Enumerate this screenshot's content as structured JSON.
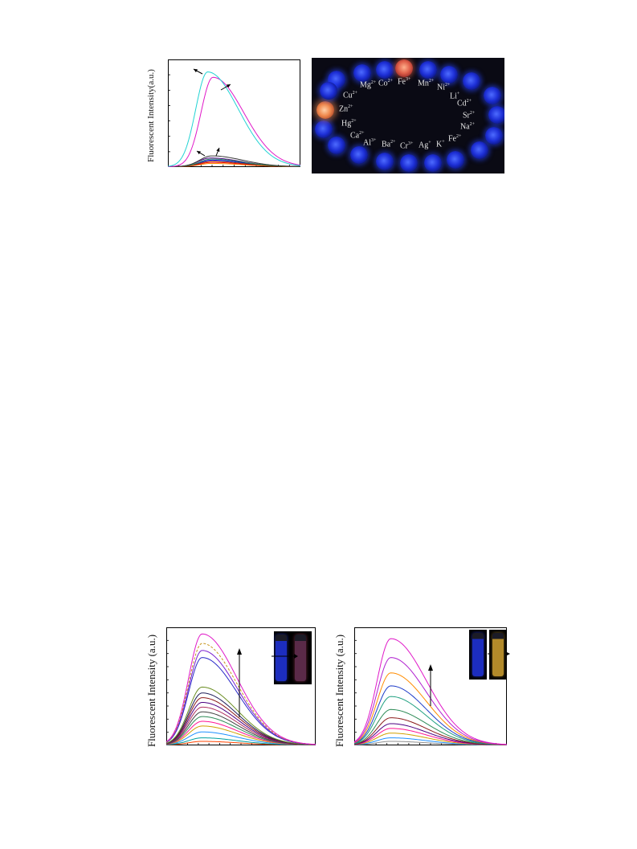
{
  "panels": {
    "top_left": {
      "ylabel": "Fluorescent Intensity(a.u.)"
    },
    "bottom_left": {
      "ylabel": "Fluorescent Intensity (a.u.)"
    },
    "bottom_right": {
      "ylabel": "Fluorescent Intensity (a.u.)"
    }
  },
  "photo": {
    "ions": [
      "Mg2+",
      "Co2+",
      "Fe3+",
      "Mn2+",
      "Ni2+",
      "Li+",
      "Cu2+",
      "Cd2+",
      "Zn2+",
      "Sr2+",
      "Hg2+",
      "Na2+",
      "Ca2+",
      "Fe2+",
      "Al3+",
      "Ba2+",
      "Cr3+",
      "Ag+",
      "K+"
    ],
    "labels": {
      "mg": "Mg",
      "mg_sup": "2+",
      "co": "Co",
      "co_sup": "2+",
      "fe3": "Fe",
      "fe3_sup": "3+",
      "mn": "Mn",
      "mn_sup": "2+",
      "ni": "Ni",
      "ni_sup": "2+",
      "li": "Li",
      "li_sup": "+",
      "cu": "Cu",
      "cu_sup": "2+",
      "cd": "Cd",
      "cd_sup": "2+",
      "zn": "Zn",
      "zn_sup": "2+",
      "sr": "Sr",
      "sr_sup": "2+",
      "hg": "Hg",
      "hg_sup": "2+",
      "na": "Na",
      "na_sup": "2+",
      "ca": "Ca",
      "ca_sup": "2+",
      "fe2": "Fe",
      "fe2_sup": "2+",
      "al": "Al",
      "al_sup": "3+",
      "ba": "Ba",
      "ba_sup": "2+",
      "cr": "Cr",
      "cr_sup": "3+",
      "ag": "Ag",
      "ag_sup": "+",
      "k": "K",
      "k_sup": "+"
    }
  },
  "chart_data": [
    {
      "type": "line",
      "ylabel": "Fluorescent Intensity(a.u.)",
      "xlim": [
        0,
        1
      ],
      "ylim": [
        0,
        1
      ],
      "curve_shape": "emission peaks",
      "series": [
        {
          "color": "#22d3d3",
          "peak": 0.88,
          "peak_x": 0.3
        },
        {
          "color": "#e018c8",
          "peak": 0.83,
          "peak_x": 0.34
        },
        {
          "color": "#3a3a3a",
          "peak": 0.1,
          "peak_x": 0.33
        },
        {
          "color": "#2e8b57",
          "peak": 0.07,
          "peak_x": 0.33
        },
        {
          "color": "#8b4513",
          "peak": 0.05,
          "peak_x": 0.33
        },
        {
          "color": "#4b0082",
          "peak": 0.08,
          "peak_x": 0.32
        },
        {
          "color": "#ff0000",
          "peak": 0.04,
          "peak_x": 0.33
        },
        {
          "color": "#0000ff",
          "peak": 0.06,
          "peak_x": 0.33
        },
        {
          "color": "#ff8c00",
          "peak": 0.03,
          "peak_x": 0.33
        }
      ]
    },
    {
      "type": "line",
      "ylabel": "Fluorescent Intensity (a.u.)",
      "xlim": [
        0,
        1
      ],
      "ylim": [
        0,
        1
      ],
      "series": [
        {
          "color": "#e018c8",
          "peak": 0.94,
          "peak_x": 0.24
        },
        {
          "color": "#c8961e",
          "peak": 0.86,
          "peak_x": 0.24,
          "dashed": true
        },
        {
          "color": "#7a1fd0",
          "peak": 0.8,
          "peak_x": 0.24
        },
        {
          "color": "#2a2ac8",
          "peak": 0.74,
          "peak_x": 0.24
        },
        {
          "color": "#6b8e23",
          "peak": 0.49,
          "peak_x": 0.24
        },
        {
          "color": "#20205a",
          "peak": 0.44,
          "peak_x": 0.24
        },
        {
          "color": "#8b1a1a",
          "peak": 0.4,
          "peak_x": 0.24
        },
        {
          "color": "#4b0082",
          "peak": 0.36,
          "peak_x": 0.24
        },
        {
          "color": "#b03060",
          "peak": 0.32,
          "peak_x": 0.24
        },
        {
          "color": "#404040",
          "peak": 0.28,
          "peak_x": 0.24
        },
        {
          "color": "#2e8b57",
          "peak": 0.24,
          "peak_x": 0.24
        },
        {
          "color": "#ff1493",
          "peak": 0.2,
          "peak_x": 0.24
        },
        {
          "color": "#d0a000",
          "peak": 0.16,
          "peak_x": 0.24
        },
        {
          "color": "#1e90ff",
          "peak": 0.11,
          "peak_x": 0.24
        },
        {
          "color": "#00a0a0",
          "peak": 0.06,
          "peak_x": 0.24
        },
        {
          "color": "#ff4500",
          "peak": 0.03,
          "peak_x": 0.24
        }
      ]
    },
    {
      "type": "line",
      "ylabel": "Fluorescent Intensity (a.u.)",
      "xlim": [
        0,
        1
      ],
      "ylim": [
        0,
        1
      ],
      "series": [
        {
          "color": "#e018c8",
          "peak": 0.9,
          "peak_x": 0.24
        },
        {
          "color": "#b020d0",
          "peak": 0.74,
          "peak_x": 0.24
        },
        {
          "color": "#ff8c00",
          "peak": 0.61,
          "peak_x": 0.24
        },
        {
          "color": "#1e3cc8",
          "peak": 0.5,
          "peak_x": 0.24
        },
        {
          "color": "#20a080",
          "peak": 0.41,
          "peak_x": 0.24
        },
        {
          "color": "#2e8b57",
          "peak": 0.3,
          "peak_x": 0.24
        },
        {
          "color": "#8b1a1a",
          "peak": 0.23,
          "peak_x": 0.24
        },
        {
          "color": "#4b0082",
          "peak": 0.18,
          "peak_x": 0.24
        },
        {
          "color": "#ff1493",
          "peak": 0.14,
          "peak_x": 0.24
        },
        {
          "color": "#d0a000",
          "peak": 0.1,
          "peak_x": 0.24
        },
        {
          "color": "#1e90ff",
          "peak": 0.06,
          "peak_x": 0.24
        },
        {
          "color": "#909090",
          "peak": 0.03,
          "peak_x": 0.24
        }
      ]
    }
  ]
}
